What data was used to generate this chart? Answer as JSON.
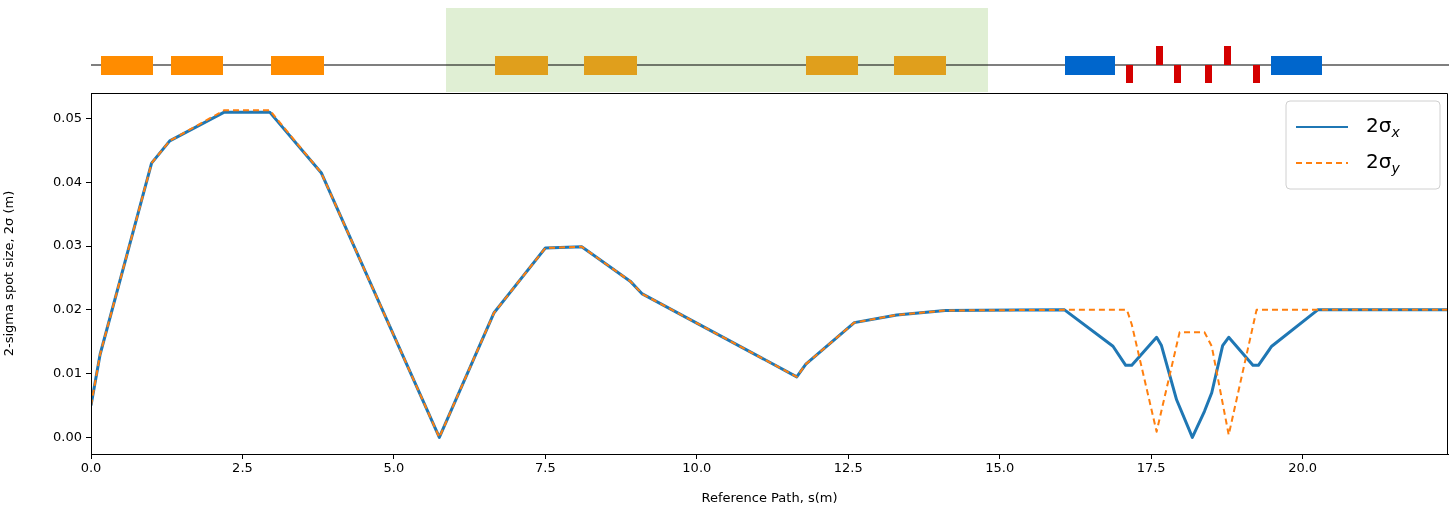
{
  "chart_data": {
    "type": "line",
    "xlabel": "Reference Path, s(m)",
    "ylabel": "2-sigma spot size, 2σ (m)",
    "xlim": [
      0,
      22.4
    ],
    "ylim": [
      -0.0026,
      0.054
    ],
    "xticks": [
      {
        "value": 0,
        "label": "0.0"
      },
      {
        "value": 2.5,
        "label": "2.5"
      },
      {
        "value": 5,
        "label": "5.0"
      },
      {
        "value": 7.5,
        "label": "7.5"
      },
      {
        "value": 10,
        "label": "10.0"
      },
      {
        "value": 12.5,
        "label": "12.5"
      },
      {
        "value": 15,
        "label": "15.0"
      },
      {
        "value": 17.5,
        "label": "17.5"
      },
      {
        "value": 20,
        "label": "20.0"
      }
    ],
    "yticks": [
      {
        "value": 0,
        "label": "0.00"
      },
      {
        "value": 0.01,
        "label": "0.01"
      },
      {
        "value": 0.02,
        "label": "0.02"
      },
      {
        "value": 0.03,
        "label": "0.03"
      },
      {
        "value": 0.04,
        "label": "0.04"
      },
      {
        "value": 0.05,
        "label": "0.05"
      }
    ],
    "grid": false,
    "legend": "top right",
    "marker": "none",
    "series": [
      {
        "name": "2σ$_{x}$",
        "color": "#1f77b4",
        "line_style": "solid",
        "x": [
          0,
          0.15,
          1.0,
          1.3,
          2.2,
          2.95,
          3.8,
          5.75,
          6.65,
          7.5,
          8.1,
          8.9,
          9.1,
          11.65,
          11.8,
          12.6,
          13.3,
          14.1,
          16.07,
          16.87,
          17.08,
          17.18,
          17.59,
          17.67,
          17.92,
          18.18,
          18.38,
          18.5,
          18.68,
          18.78,
          19.18,
          19.27,
          19.49,
          20.25,
          22.4
        ],
        "values": [
          0.005,
          0.013,
          0.043,
          0.0465,
          0.051,
          0.051,
          0.0415,
          0.0,
          0.0195,
          0.0297,
          0.0299,
          0.0245,
          0.0225,
          0.0095,
          0.0115,
          0.018,
          0.0192,
          0.0199,
          0.02,
          0.0143,
          0.0113,
          0.0113,
          0.0157,
          0.0144,
          0.0059,
          0.0,
          0.0041,
          0.007,
          0.0144,
          0.0157,
          0.0113,
          0.0113,
          0.0143,
          0.02,
          0.02
        ]
      },
      {
        "name": "2σ$_{y}$",
        "color": "#ff7f0e",
        "line_style": "dashed",
        "x": [
          0,
          0.15,
          1.0,
          1.3,
          2.2,
          2.95,
          3.8,
          5.75,
          6.65,
          7.5,
          8.1,
          8.9,
          9.1,
          11.65,
          11.8,
          12.6,
          13.3,
          14.1,
          16.07,
          17.1,
          17.18,
          17.59,
          17.97,
          18.38,
          18.5,
          18.78,
          19.24,
          22.4
        ],
        "values": [
          0.005,
          0.013,
          0.043,
          0.0465,
          0.0513,
          0.0513,
          0.0415,
          0.0,
          0.0195,
          0.0297,
          0.0299,
          0.0245,
          0.0225,
          0.0095,
          0.0115,
          0.018,
          0.0192,
          0.0199,
          0.02,
          0.02,
          0.0177,
          0.0009,
          0.0165,
          0.0165,
          0.0143,
          0.0004,
          0.02,
          0.02
        ]
      }
    ]
  }
}
